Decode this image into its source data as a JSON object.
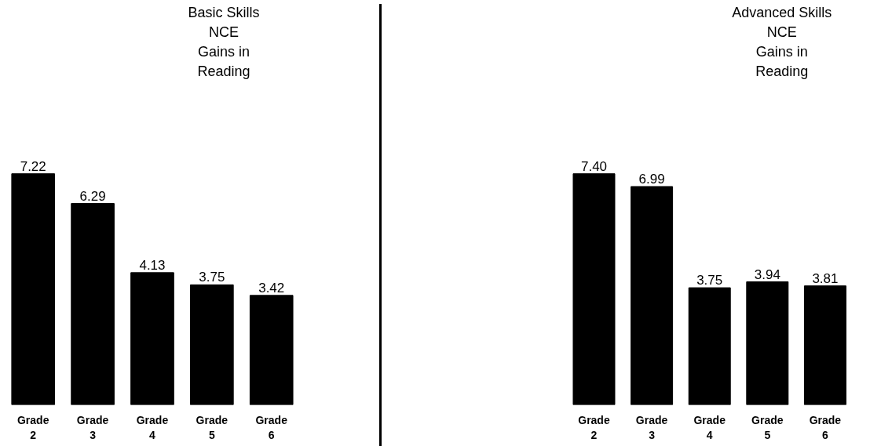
{
  "chart_data": [
    {
      "type": "bar",
      "title": "Basic Skills\nNCE\nGains in\nReading",
      "categories": [
        "Grade 2",
        "Grade 3",
        "Grade 4",
        "Grade 5",
        "Grade 6"
      ],
      "values": [
        7.22,
        6.29,
        4.13,
        3.75,
        3.42
      ],
      "value_labels": [
        "7.22",
        "6.29",
        "4.13",
        "3.75",
        "3.42"
      ],
      "color": "#000000",
      "grid": false
    },
    {
      "type": "bar",
      "title": "Advanced Skills\nNCE\nGains in\nReading",
      "categories": [
        "Grade 2",
        "Grade 3",
        "Grade 4",
        "Grade 5",
        "Grade 6"
      ],
      "values": [
        7.4,
        6.99,
        3.75,
        3.94,
        3.81
      ],
      "value_labels": [
        "7.40",
        "6.99",
        "3.75",
        "3.94",
        "3.81"
      ],
      "color": "#000000",
      "grid": false
    }
  ]
}
